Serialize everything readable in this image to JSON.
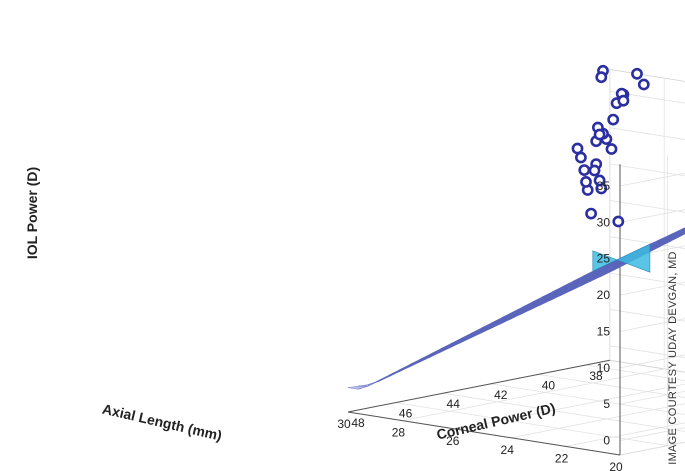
{
  "chart_data": {
    "type": "surface",
    "title": "",
    "zlabel": "IOL Power (D)",
    "xlabel": "Axial Length (mm)",
    "ylabel": "Corneal Power (D)",
    "x_ticks": [
      20,
      22,
      24,
      26,
      28,
      30
    ],
    "y_ticks": [
      38,
      40,
      42,
      44,
      46,
      48
    ],
    "z_ticks": [
      0,
      5,
      10,
      15,
      20,
      25,
      30,
      35
    ],
    "xlim": [
      20,
      30
    ],
    "ylim": [
      37,
      48
    ],
    "zlim": [
      -2,
      38
    ],
    "grid": true,
    "surface": {
      "description": "fitted surface",
      "x_range": [
        21,
        30
      ],
      "y_range": [
        37,
        48
      ],
      "color": "#a7b1e6"
    },
    "scatter": {
      "color": "#2b2fa0",
      "points": [
        {
          "x": 20.5,
          "y": 47.5,
          "z": 29.5
        },
        {
          "x": 21.5,
          "y": 47.5,
          "z": 30.0
        },
        {
          "x": 22.0,
          "y": 46.5,
          "z": 32.5
        },
        {
          "x": 22.5,
          "y": 46.5,
          "z": 32.0
        },
        {
          "x": 22.5,
          "y": 46.0,
          "z": 33.0
        },
        {
          "x": 22.5,
          "y": 45.5,
          "z": 37.0
        },
        {
          "x": 23.0,
          "y": 46.0,
          "z": 32.5
        },
        {
          "x": 23.5,
          "y": 45.0,
          "z": 34.0
        },
        {
          "x": 23.5,
          "y": 45.5,
          "z": 33.5
        },
        {
          "x": 24.0,
          "y": 44.5,
          "z": 32.5
        },
        {
          "x": 24.0,
          "y": 44.0,
          "z": 36.5
        },
        {
          "x": 24.5,
          "y": 44.5,
          "z": 34.0
        },
        {
          "x": 24.5,
          "y": 43.0,
          "z": 40.5
        },
        {
          "x": 25.0,
          "y": 43.0,
          "z": 36.0
        },
        {
          "x": 25.5,
          "y": 43.5,
          "z": 34.0
        },
        {
          "x": 25.5,
          "y": 42.0,
          "z": 37.0
        },
        {
          "x": 26.0,
          "y": 41.0,
          "z": 39.5
        },
        {
          "x": 26.5,
          "y": 41.5,
          "z": 35.0
        },
        {
          "x": 26.5,
          "y": 40.5,
          "z": 39.0
        },
        {
          "x": 27.0,
          "y": 41.0,
          "z": 32.5
        },
        {
          "x": 27.0,
          "y": 39.0,
          "z": 39.0
        },
        {
          "x": 28.5,
          "y": 39.0,
          "z": 40.0
        },
        {
          "x": 29.0,
          "y": 38.5,
          "z": 38.5
        },
        {
          "x": 29.0,
          "y": 37.0,
          "z": 38.0
        },
        {
          "x": 29.5,
          "y": 37.0,
          "z": 34.0
        },
        {
          "x": 29.5,
          "y": 38.0,
          "z": 30.0
        }
      ]
    }
  },
  "credit": "IMAGE COURTESY UDAY DEVGAN, MD"
}
